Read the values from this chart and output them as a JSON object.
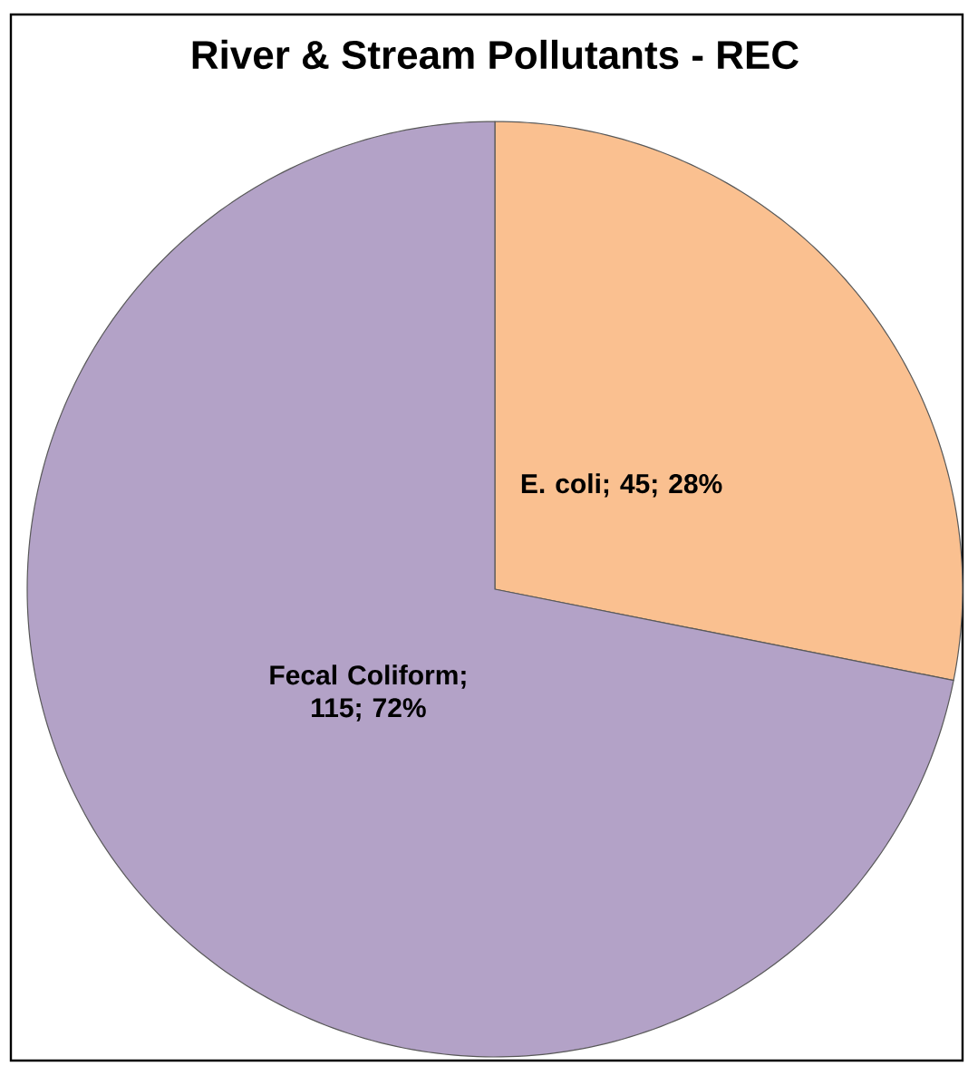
{
  "chart_data": {
    "type": "pie",
    "title": "River & Stream Pollutants - REC",
    "categories": [
      "E. coli",
      "Fecal Coliform"
    ],
    "values": [
      45,
      115
    ],
    "colors": [
      "#fac090",
      "#b3a2c7"
    ],
    "value_labels": [
      "; 45; 28%",
      "; 115; 72%"
    ]
  }
}
